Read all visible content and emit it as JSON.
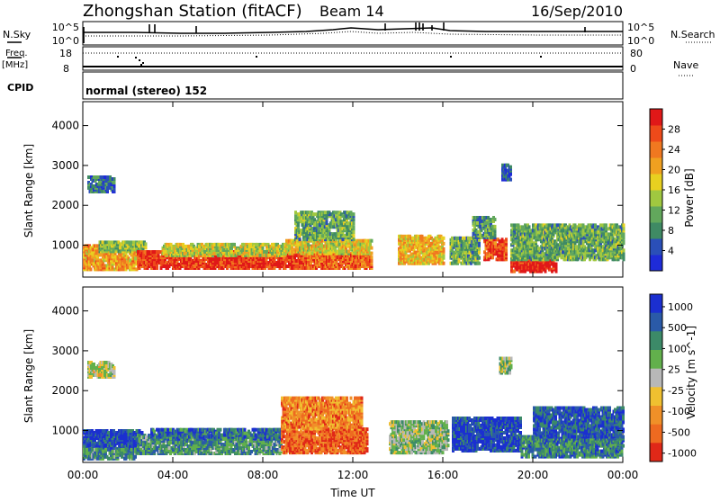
{
  "header": {
    "station": "Zhongshan Station (fitACF)",
    "beam": "Beam 14",
    "date": "16/Sep/2010"
  },
  "panels": {
    "nsky": {
      "label": "N.Sky",
      "left_ticks": [
        "10^5",
        "10^0"
      ],
      "right_ticks": [
        "10^5",
        "10^0"
      ],
      "right_label": "N.Search"
    },
    "freq": {
      "label_lines": [
        "Freq.",
        "[MHz]"
      ],
      "left_ticks": [
        "18",
        "8"
      ],
      "right_ticks": [
        "80",
        "0"
      ],
      "right_label": "Nave"
    },
    "cpid": {
      "label": "CPID",
      "value": "normal (stereo) 152"
    }
  },
  "chart_data": [
    {
      "type": "heatmap",
      "name": "power",
      "ylabel": "Slant Range [km]",
      "ylim": [
        200,
        4600
      ],
      "yticks": [
        "1000",
        "2000",
        "3000",
        "4000"
      ],
      "ytick_values": [
        1000,
        2000,
        3000,
        4000
      ],
      "colorbar": {
        "label": "Power [dB]",
        "tick_labels": [
          "4",
          "8",
          "12",
          "16",
          "20",
          "24",
          "28"
        ],
        "colors": [
          "#1e2bd8",
          "#2a4fb8",
          "#3f8a64",
          "#62a85c",
          "#a0c840",
          "#e8d020",
          "#f0a020",
          "#f07820",
          "#ee4a1a",
          "#e01818"
        ]
      },
      "regions": [
        {
          "t0": 0.0,
          "t1": 2.4,
          "r0": 350,
          "r1": 950,
          "level": 0.65
        },
        {
          "t0": 0.7,
          "t1": 2.8,
          "r0": 800,
          "r1": 1050,
          "level": 0.4
        },
        {
          "t0": 2.4,
          "t1": 9.6,
          "r0": 380,
          "r1": 820,
          "level": 0.9
        },
        {
          "t0": 3.5,
          "t1": 9.0,
          "r0": 700,
          "r1": 1000,
          "level": 0.5
        },
        {
          "t0": 9.6,
          "t1": 12.8,
          "r0": 380,
          "r1": 760,
          "level": 0.8
        },
        {
          "t0": 9.0,
          "t1": 12.8,
          "r0": 750,
          "r1": 1100,
          "level": 0.55
        },
        {
          "t0": 9.4,
          "t1": 12.0,
          "r0": 1100,
          "r1": 1800,
          "level": 0.35
        },
        {
          "t0": 14.0,
          "t1": 16.0,
          "r0": 500,
          "r1": 1200,
          "level": 0.6
        },
        {
          "t0": 16.3,
          "t1": 17.6,
          "r0": 500,
          "r1": 1150,
          "level": 0.35
        },
        {
          "t0": 17.8,
          "t1": 18.8,
          "r0": 600,
          "r1": 1100,
          "level": 0.85
        },
        {
          "t0": 17.3,
          "t1": 18.3,
          "r0": 1150,
          "r1": 1650,
          "level": 0.3
        },
        {
          "t0": 19.0,
          "t1": 21.0,
          "r0": 300,
          "r1": 650,
          "level": 0.95
        },
        {
          "t0": 19.0,
          "t1": 24.0,
          "r0": 600,
          "r1": 1500,
          "level": 0.35
        },
        {
          "t0": 0.2,
          "t1": 1.4,
          "r0": 2300,
          "r1": 2700,
          "level": 0.2
        },
        {
          "t0": 18.6,
          "t1": 19.0,
          "r0": 2600,
          "r1": 3000,
          "level": 0.15
        }
      ]
    },
    {
      "type": "heatmap",
      "name": "velocity",
      "xlabel": "Time UT",
      "ylabel": "Slant Range [km]",
      "xlim": [
        0,
        24
      ],
      "xticks": [
        "00:00",
        "04:00",
        "08:00",
        "12:00",
        "16:00",
        "20:00",
        "00:00"
      ],
      "xtick_values": [
        0,
        4,
        8,
        12,
        16,
        20,
        24
      ],
      "ylim": [
        200,
        4600
      ],
      "yticks": [
        "1000",
        "2000",
        "3000",
        "4000"
      ],
      "ytick_values": [
        1000,
        2000,
        3000,
        4000
      ],
      "colorbar": {
        "label": "Velocity [m s^-1]",
        "tick_labels": [
          "1000",
          "500",
          "100",
          "25",
          "-25",
          "-100",
          "-500",
          "-1000"
        ],
        "colors": [
          "#1b2fd0",
          "#2a5aa8",
          "#3c8a68",
          "#62b04c",
          "#b8b8b8",
          "#f0c030",
          "#f09028",
          "#ee6a20",
          "#e02818"
        ]
      },
      "regions": [
        {
          "t0": 0.0,
          "t1": 2.6,
          "r0": 450,
          "r1": 950,
          "level": 0.1
        },
        {
          "t0": 0.0,
          "t1": 2.4,
          "r0": 250,
          "r1": 480,
          "level": 0.3
        },
        {
          "t0": 2.4,
          "t1": 8.8,
          "r0": 380,
          "r1": 850,
          "level": 0.3
        },
        {
          "t0": 3.0,
          "t1": 8.8,
          "r0": 750,
          "r1": 1000,
          "level": 0.2
        },
        {
          "t0": 8.8,
          "t1": 12.6,
          "r0": 400,
          "r1": 1000,
          "level": 0.85
        },
        {
          "t0": 8.8,
          "t1": 12.4,
          "r0": 1000,
          "r1": 1800,
          "level": 0.75
        },
        {
          "t0": 13.6,
          "t1": 16.2,
          "r0": 400,
          "r1": 1200,
          "level": 0.45
        },
        {
          "t0": 16.4,
          "t1": 19.4,
          "r0": 450,
          "r1": 1300,
          "level": 0.1
        },
        {
          "t0": 19.4,
          "t1": 24.0,
          "r0": 300,
          "r1": 800,
          "level": 0.25
        },
        {
          "t0": 20.0,
          "t1": 24.0,
          "r0": 800,
          "r1": 1550,
          "level": 0.15
        },
        {
          "t0": 0.2,
          "t1": 1.4,
          "r0": 2300,
          "r1": 2700,
          "level": 0.5
        },
        {
          "t0": 18.5,
          "t1": 19.0,
          "r0": 2400,
          "r1": 2800,
          "level": 0.45
        }
      ]
    }
  ]
}
